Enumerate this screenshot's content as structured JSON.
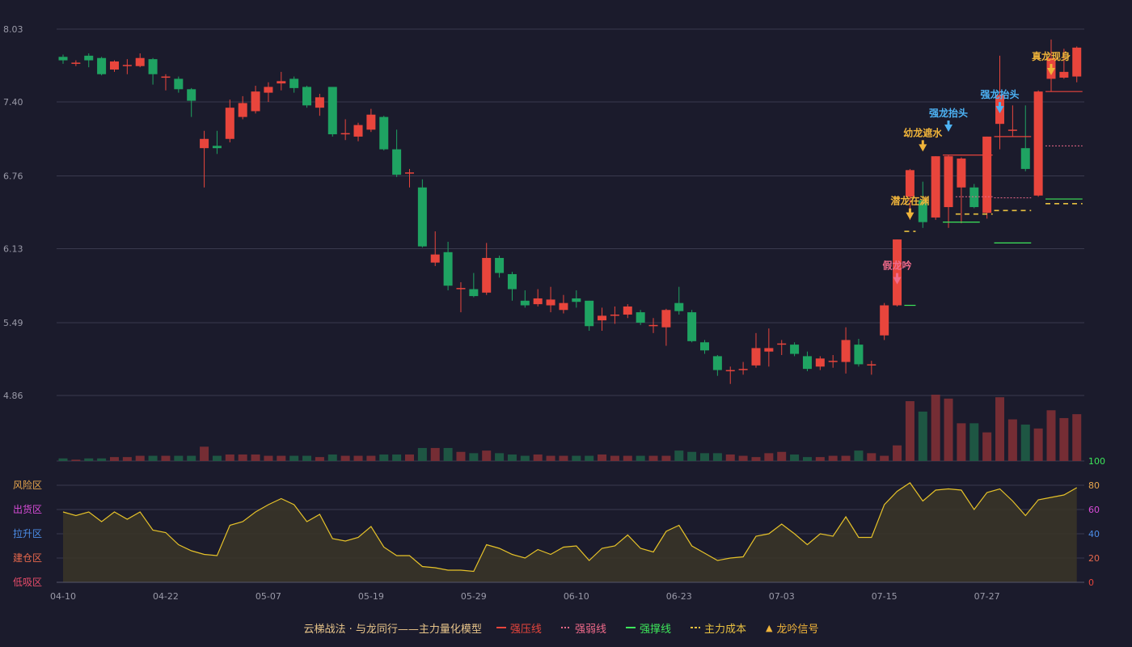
{
  "colors": {
    "background": "#1b1b2c",
    "up": "#e8453c",
    "down": "#1fa362",
    "grid": "#3a3a4e",
    "axis_text": "#9a9aa8",
    "oscillator_line": "#e6c229",
    "signal_yellow": "#f0b43a",
    "signal_blue": "#4db3f5",
    "signal_pink": "#f06a8a",
    "strong_support": "#3de65a",
    "main_cost": "#e8c040"
  },
  "chart_data": {
    "type": "candlestick",
    "price_axis": {
      "ticks": [
        "8.03",
        "7.40",
        "6.76",
        "6.13",
        "5.49",
        "4.86"
      ],
      "range": [
        4.86,
        8.03
      ]
    },
    "oscillator_axis": {
      "ticks": [
        "0",
        "20",
        "40",
        "60",
        "80",
        "100"
      ],
      "zones": [
        {
          "label": "风险区",
          "color": "#e8a64c"
        },
        {
          "label": "出货区",
          "color": "#d94cd9"
        },
        {
          "label": "拉升区",
          "color": "#4c8ee8"
        },
        {
          "label": "建仓区",
          "color": "#e8684c"
        },
        {
          "label": "低吸区",
          "color": "#e84c6a"
        }
      ]
    },
    "x_tick_labels": [
      {
        "index": 0,
        "label": "04-10"
      },
      {
        "index": 8,
        "label": "04-22"
      },
      {
        "index": 16,
        "label": "05-07"
      },
      {
        "index": 24,
        "label": "05-19"
      },
      {
        "index": 32,
        "label": "05-29"
      },
      {
        "index": 40,
        "label": "06-10"
      },
      {
        "index": 48,
        "label": "06-23"
      },
      {
        "index": 56,
        "label": "07-03"
      },
      {
        "index": 64,
        "label": "07-15"
      },
      {
        "index": 72,
        "label": "07-27"
      }
    ],
    "candles": [
      [
        7.79,
        7.76,
        7.81,
        7.73
      ],
      [
        7.74,
        7.74,
        7.76,
        7.71
      ],
      [
        7.8,
        7.76,
        7.82,
        7.7
      ],
      [
        7.78,
        7.64,
        7.79,
        7.63
      ],
      [
        7.68,
        7.75,
        7.76,
        7.66
      ],
      [
        7.72,
        7.72,
        7.77,
        7.64
      ],
      [
        7.71,
        7.78,
        7.82,
        7.7
      ],
      [
        7.77,
        7.64,
        7.78,
        7.55
      ],
      [
        7.62,
        7.62,
        7.64,
        7.5
      ],
      [
        7.6,
        7.51,
        7.62,
        7.48
      ],
      [
        7.51,
        7.41,
        7.52,
        7.27
      ],
      [
        7.0,
        7.08,
        7.15,
        6.66
      ],
      [
        7.02,
        7.0,
        7.15,
        6.95
      ],
      [
        7.08,
        7.35,
        7.42,
        7.05
      ],
      [
        7.27,
        7.39,
        7.45,
        7.25
      ],
      [
        7.32,
        7.49,
        7.54,
        7.3
      ],
      [
        7.48,
        7.53,
        7.57,
        7.4
      ],
      [
        7.56,
        7.58,
        7.66,
        7.5
      ],
      [
        7.6,
        7.52,
        7.62,
        7.48
      ],
      [
        7.53,
        7.37,
        7.54,
        7.35
      ],
      [
        7.35,
        7.44,
        7.47,
        7.28
      ],
      [
        7.53,
        7.12,
        7.53,
        7.1
      ],
      [
        7.12,
        7.13,
        7.25,
        7.07
      ],
      [
        7.1,
        7.2,
        7.22,
        7.06
      ],
      [
        7.16,
        7.29,
        7.34,
        7.14
      ],
      [
        7.27,
        6.99,
        7.28,
        6.98
      ],
      [
        6.99,
        6.77,
        7.16,
        6.75
      ],
      [
        6.79,
        6.79,
        6.82,
        6.66
      ],
      [
        6.66,
        6.15,
        6.73,
        6.14
      ],
      [
        6.01,
        6.08,
        6.28,
        5.98
      ],
      [
        6.1,
        5.81,
        6.19,
        5.77
      ],
      [
        5.79,
        5.79,
        5.84,
        5.58
      ],
      [
        5.78,
        5.72,
        5.92,
        5.71
      ],
      [
        5.75,
        6.05,
        6.18,
        5.73
      ],
      [
        6.05,
        5.92,
        6.07,
        5.88
      ],
      [
        5.91,
        5.78,
        5.93,
        5.68
      ],
      [
        5.68,
        5.64,
        5.77,
        5.62
      ],
      [
        5.65,
        5.7,
        5.78,
        5.63
      ],
      [
        5.64,
        5.69,
        5.8,
        5.58
      ],
      [
        5.6,
        5.66,
        5.73,
        5.57
      ],
      [
        5.7,
        5.67,
        5.77,
        5.62
      ],
      [
        5.68,
        5.46,
        5.68,
        5.42
      ],
      [
        5.51,
        5.55,
        5.62,
        5.42
      ],
      [
        5.56,
        5.56,
        5.63,
        5.48
      ],
      [
        5.56,
        5.63,
        5.65,
        5.53
      ],
      [
        5.58,
        5.49,
        5.6,
        5.47
      ],
      [
        5.47,
        5.47,
        5.53,
        5.4
      ],
      [
        5.45,
        5.6,
        5.61,
        5.29
      ],
      [
        5.66,
        5.59,
        5.8,
        5.56
      ],
      [
        5.58,
        5.33,
        5.6,
        5.32
      ],
      [
        5.32,
        5.25,
        5.34,
        5.22
      ],
      [
        5.2,
        5.08,
        5.21,
        5.03
      ],
      [
        5.08,
        5.08,
        5.11,
        4.96
      ],
      [
        5.09,
        5.09,
        5.15,
        5.04
      ],
      [
        5.12,
        5.27,
        5.4,
        5.1
      ],
      [
        5.24,
        5.27,
        5.44,
        5.11
      ],
      [
        5.31,
        5.31,
        5.34,
        5.21
      ],
      [
        5.3,
        5.22,
        5.32,
        5.2
      ],
      [
        5.2,
        5.09,
        5.24,
        5.07
      ],
      [
        5.11,
        5.18,
        5.2,
        5.08
      ],
      [
        5.16,
        5.16,
        5.21,
        5.1
      ],
      [
        5.15,
        5.34,
        5.45,
        5.05
      ],
      [
        5.3,
        5.13,
        5.35,
        5.11
      ],
      [
        5.13,
        5.13,
        5.16,
        5.04
      ],
      [
        5.38,
        5.64,
        5.66,
        5.34
      ],
      [
        5.64,
        6.21,
        6.21,
        5.63
      ],
      [
        6.58,
        6.81,
        6.82,
        6.38
      ],
      [
        6.55,
        6.36,
        6.71,
        6.31
      ],
      [
        6.4,
        6.93,
        6.93,
        6.38
      ],
      [
        6.49,
        6.93,
        6.94,
        6.31
      ],
      [
        6.66,
        6.91,
        6.92,
        6.35
      ],
      [
        6.66,
        6.49,
        6.69,
        6.48
      ],
      [
        6.44,
        7.1,
        7.1,
        6.39
      ],
      [
        7.21,
        7.46,
        7.8,
        6.99
      ],
      [
        7.16,
        7.16,
        7.37,
        7.1
      ],
      [
        7.0,
        6.82,
        7.37,
        6.8
      ],
      [
        6.59,
        7.49,
        7.5,
        6.58
      ],
      [
        7.6,
        7.78,
        7.94,
        7.49
      ],
      [
        7.61,
        7.66,
        7.86,
        7.6
      ],
      [
        7.62,
        7.87,
        7.88,
        7.57
      ]
    ],
    "volumes": [
      2,
      1,
      2,
      2,
      3,
      3,
      4,
      4,
      4,
      4,
      4,
      11,
      4,
      5,
      5,
      5,
      4,
      4,
      4,
      4,
      3,
      5,
      4,
      4,
      4,
      5,
      5,
      5,
      10,
      10,
      10,
      7,
      6,
      8,
      6,
      5,
      4,
      5,
      4,
      4,
      4,
      4,
      5,
      4,
      4,
      4,
      4,
      4,
      8,
      7,
      6,
      6,
      5,
      4,
      3,
      6,
      7,
      5,
      3,
      3,
      4,
      4,
      8,
      6,
      4,
      12,
      46,
      38,
      51,
      48,
      29,
      29,
      22,
      49,
      32,
      28,
      25,
      39,
      33,
      36
    ],
    "oscillator": [
      58,
      55,
      58,
      50,
      58,
      52,
      58,
      43,
      41,
      31,
      26,
      23,
      22,
      47,
      50,
      58,
      64,
      69,
      64,
      50,
      56,
      36,
      34,
      37,
      46,
      29,
      22,
      22,
      13,
      12,
      10,
      10,
      9,
      31,
      28,
      23,
      20,
      27,
      23,
      29,
      30,
      18,
      28,
      30,
      39,
      28,
      25,
      42,
      47,
      30,
      24,
      18,
      20,
      21,
      38,
      40,
      48,
      40,
      31,
      40,
      38,
      54,
      37,
      37,
      64,
      75,
      82,
      67,
      76,
      77,
      76,
      60,
      74,
      77,
      67,
      55,
      68,
      70,
      72,
      78
    ],
    "signals": [
      {
        "index": 65,
        "label": "假龙吟",
        "color": "#f06a8a",
        "price": 5.8,
        "dir": "down"
      },
      {
        "index": 66,
        "label": "潜龙在渊",
        "color": "#f0b43a",
        "price": 6.36,
        "dir": "down"
      },
      {
        "index": 67,
        "label": "幼龙遮水",
        "color": "#f0b43a",
        "price": 6.95,
        "dir": "down"
      },
      {
        "index": 69,
        "label": "强龙抬头",
        "color": "#4db3f5",
        "price": 7.12,
        "dir": "down"
      },
      {
        "index": 73,
        "label": "强龙抬头",
        "color": "#4db3f5",
        "price": 7.28,
        "dir": "down"
      },
      {
        "index": 77,
        "label": "真龙现身",
        "color": "#f0b43a",
        "price": 7.61,
        "dir": "down"
      }
    ],
    "level_lines": [
      {
        "type": "strong_pressure",
        "from": 69,
        "to": 72,
        "price": 6.94
      },
      {
        "type": "strong_pressure",
        "from": 73,
        "to": 75,
        "price": 7.1
      },
      {
        "type": "strong_pressure",
        "from": 77,
        "to": 79,
        "price": 7.49
      },
      {
        "type": "strong_weak",
        "from": 70,
        "to": 72,
        "price": 6.58
      },
      {
        "type": "strong_weak",
        "from": 73,
        "to": 75,
        "price": 6.57
      },
      {
        "type": "strong_weak",
        "from": 77,
        "to": 79,
        "price": 7.02
      },
      {
        "type": "strong_support",
        "from": 66,
        "to": 66,
        "price": 5.64
      },
      {
        "type": "strong_support",
        "from": 69,
        "to": 71,
        "price": 6.36
      },
      {
        "type": "strong_support",
        "from": 73,
        "to": 75,
        "price": 6.18
      },
      {
        "type": "strong_support",
        "from": 77,
        "to": 79,
        "price": 6.56
      },
      {
        "type": "main_cost",
        "from": 66,
        "to": 66,
        "price": 6.28
      },
      {
        "type": "main_cost",
        "from": 70,
        "to": 72,
        "price": 6.43
      },
      {
        "type": "main_cost",
        "from": 73,
        "to": 75,
        "price": 6.46
      },
      {
        "type": "main_cost",
        "from": 77,
        "to": 79,
        "price": 6.52
      }
    ]
  },
  "legend": {
    "title": "云梯战法 · 与龙同行——主力量化模型",
    "items": [
      {
        "label": "强压线",
        "color": "#e8453c",
        "style": "solid"
      },
      {
        "label": "强弱线",
        "color": "#f06a8a",
        "style": "dotted"
      },
      {
        "label": "强撑线",
        "color": "#3de65a",
        "style": "solid"
      },
      {
        "label": "主力成本",
        "color": "#e8c040",
        "style": "dashed"
      },
      {
        "label": "龙吟信号",
        "color": "#f0b43a",
        "style": "triangle",
        "glyph": "▲"
      }
    ]
  }
}
